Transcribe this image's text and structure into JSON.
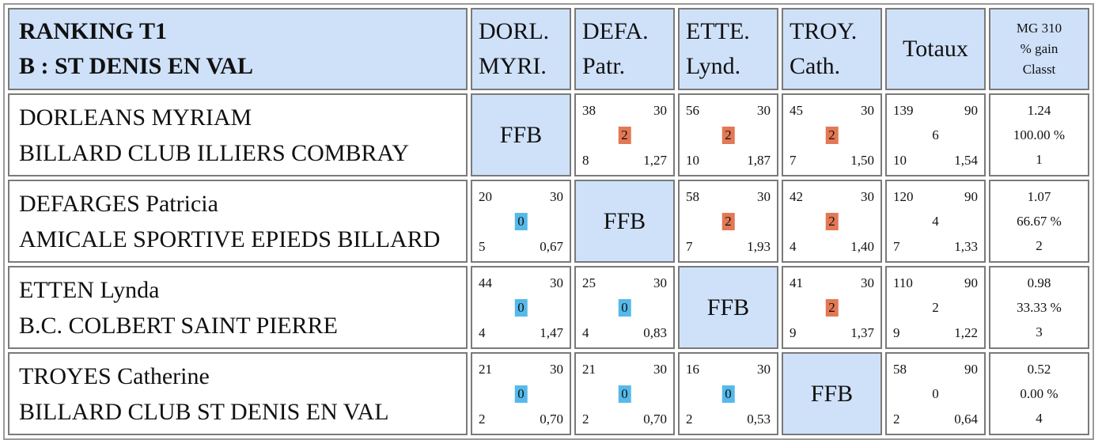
{
  "header": {
    "title_line1": "RANKING T1",
    "title_line2": "B : ST DENIS EN VAL",
    "columns": [
      {
        "line1": "DORL.",
        "line2": "MYRI."
      },
      {
        "line1": "DEFA.",
        "line2": "Patr."
      },
      {
        "line1": "ETTE.",
        "line2": "Lynd."
      },
      {
        "line1": "TROY.",
        "line2": "Cath."
      }
    ],
    "totals_label": "Totaux",
    "mg_line1": "MG 310",
    "mg_line2": "% gain",
    "mg_line3": "Classt"
  },
  "self_label": "FFB",
  "colors": {
    "header_bg": "#cfe1f9",
    "win": "#e37854",
    "loss": "#55b9ea"
  },
  "players": [
    {
      "name": "DORLEANS MYRIAM",
      "club": "BILLARD CLUB ILLIERS COMBRAY",
      "matches": [
        null,
        {
          "points": "38",
          "target": "30",
          "result": "2",
          "innings": "8",
          "avg": "1,27"
        },
        {
          "points": "56",
          "target": "30",
          "result": "2",
          "innings": "10",
          "avg": "1,87"
        },
        {
          "points": "45",
          "target": "30",
          "result": "2",
          "innings": "7",
          "avg": "1,50"
        }
      ],
      "totals": {
        "points": "139",
        "target": "90",
        "result": "6",
        "innings": "10",
        "avg": "1,54"
      },
      "mg": {
        "value": "1.24",
        "gain": "100.00 %",
        "rank": "1"
      }
    },
    {
      "name": "DEFARGES Patricia",
      "club": "AMICALE SPORTIVE EPIEDS BILLARD",
      "matches": [
        {
          "points": "20",
          "target": "30",
          "result": "0",
          "innings": "5",
          "avg": "0,67"
        },
        null,
        {
          "points": "58",
          "target": "30",
          "result": "2",
          "innings": "7",
          "avg": "1,93"
        },
        {
          "points": "42",
          "target": "30",
          "result": "2",
          "innings": "4",
          "avg": "1,40"
        }
      ],
      "totals": {
        "points": "120",
        "target": "90",
        "result": "4",
        "innings": "7",
        "avg": "1,33"
      },
      "mg": {
        "value": "1.07",
        "gain": "66.67 %",
        "rank": "2"
      }
    },
    {
      "name": "ETTEN Lynda",
      "club": "B.C. COLBERT SAINT PIERRE",
      "matches": [
        {
          "points": "44",
          "target": "30",
          "result": "0",
          "innings": "4",
          "avg": "1,47"
        },
        {
          "points": "25",
          "target": "30",
          "result": "0",
          "innings": "4",
          "avg": "0,83"
        },
        null,
        {
          "points": "41",
          "target": "30",
          "result": "2",
          "innings": "9",
          "avg": "1,37"
        }
      ],
      "totals": {
        "points": "110",
        "target": "90",
        "result": "2",
        "innings": "9",
        "avg": "1,22"
      },
      "mg": {
        "value": "0.98",
        "gain": "33.33 %",
        "rank": "3"
      }
    },
    {
      "name": "TROYES Catherine",
      "club": "BILLARD CLUB ST DENIS EN VAL",
      "matches": [
        {
          "points": "21",
          "target": "30",
          "result": "0",
          "innings": "2",
          "avg": "0,70"
        },
        {
          "points": "21",
          "target": "30",
          "result": "0",
          "innings": "2",
          "avg": "0,70"
        },
        {
          "points": "16",
          "target": "30",
          "result": "0",
          "innings": "2",
          "avg": "0,53"
        },
        null
      ],
      "totals": {
        "points": "58",
        "target": "90",
        "result": "0",
        "innings": "2",
        "avg": "0,64"
      },
      "mg": {
        "value": "0.52",
        "gain": "0.00 %",
        "rank": "4"
      }
    }
  ]
}
